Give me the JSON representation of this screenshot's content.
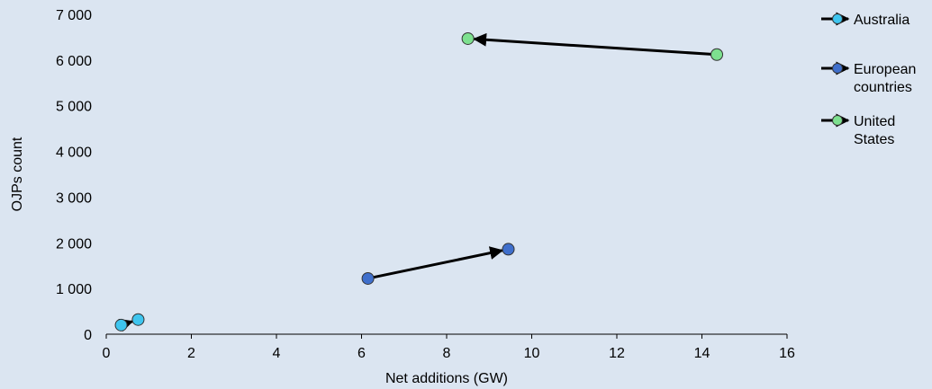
{
  "chart_data": {
    "type": "scatter",
    "xlabel": "Net additions (GW)",
    "ylabel": "OJPs count",
    "xlim": [
      0,
      16
    ],
    "ylim": [
      0,
      7000
    ],
    "x_ticks": [
      0,
      2,
      4,
      6,
      8,
      10,
      12,
      14,
      16
    ],
    "y_ticks": [
      0,
      1000,
      2000,
      3000,
      4000,
      5000,
      6000,
      7000
    ],
    "x_tick_labels": [
      "0",
      "2",
      "4",
      "6",
      "8",
      "10",
      "12",
      "14",
      "16"
    ],
    "y_tick_labels": [
      "0",
      "1 000",
      "2 000",
      "3 000",
      "4 000",
      "5 000",
      "6 000",
      "7 000"
    ],
    "grid": false,
    "legend_position": "right",
    "series": [
      {
        "name": "Australia",
        "legend_lines": [
          "Australia"
        ],
        "color": "#3ec5ef",
        "points": [
          {
            "x": 0.35,
            "y": 200
          },
          {
            "x": 0.75,
            "y": 320
          }
        ]
      },
      {
        "name": "European countries",
        "legend_lines": [
          "European",
          "countries"
        ],
        "color": "#3f6fcc",
        "points": [
          {
            "x": 6.15,
            "y": 1220
          },
          {
            "x": 9.45,
            "y": 1860
          }
        ]
      },
      {
        "name": "United States",
        "legend_lines": [
          "United",
          "States"
        ],
        "color": "#7de08f",
        "points": [
          {
            "x": 14.35,
            "y": 6120
          },
          {
            "x": 8.5,
            "y": 6470
          }
        ]
      }
    ]
  }
}
